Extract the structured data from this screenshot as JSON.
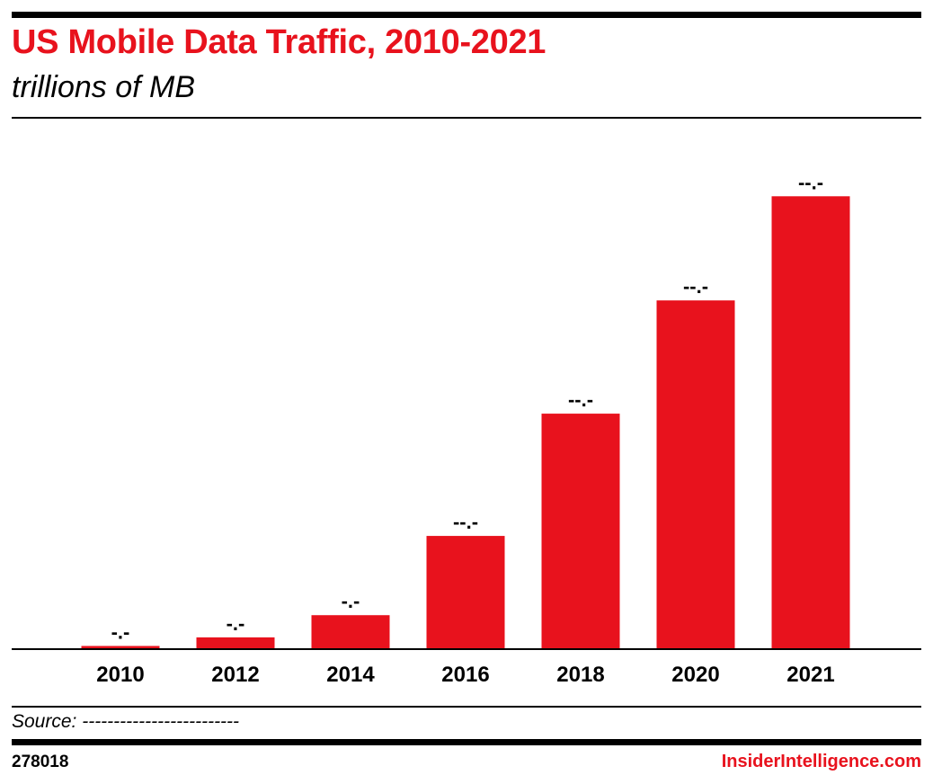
{
  "header": {
    "title": "US Mobile Data Traffic, 2010-2021",
    "subtitle": "trillions of MB"
  },
  "footer": {
    "source": "Source: -------------------------",
    "chart_id": "278018",
    "brand": "InsiderIntelligence.com"
  },
  "colors": {
    "accent": "#e8121d",
    "text": "#000000"
  },
  "chart_data": {
    "type": "bar",
    "title": "US Mobile Data Traffic, 2010-2021",
    "subtitle": "trillions of MB",
    "categories": [
      "2010",
      "2012",
      "2014",
      "2016",
      "2018",
      "2020",
      "2021"
    ],
    "values": [
      0.7,
      2.6,
      7.5,
      25.0,
      52.0,
      77.0,
      100.0
    ],
    "value_labels": [
      "-.-",
      "-.-",
      "-.-",
      "--.-",
      "--.-",
      "--.-",
      "--.-"
    ],
    "ylim": [
      0,
      108
    ],
    "grid": false,
    "legend": "none",
    "bar_color": "#e8121d"
  }
}
